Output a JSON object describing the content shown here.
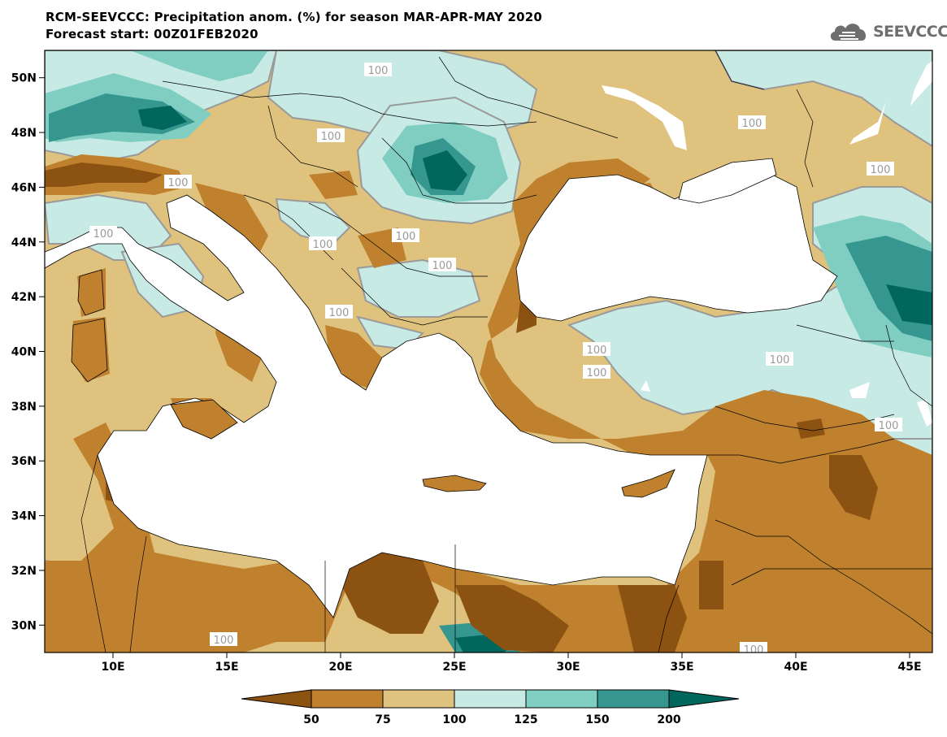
{
  "header": {
    "title_line1": "RCM-SEEVCCC: Precipitation anom. (%) for season MAR-APR-MAY 2020",
    "title_line2": "Forecast start: 00Z01FEB2020"
  },
  "logo": {
    "text": "SEEVCCC",
    "icon": "cloud-icon"
  },
  "map": {
    "lon_range": [
      7,
      46
    ],
    "lat_range": [
      29,
      51
    ],
    "lat_ticks": [
      "50N",
      "48N",
      "46N",
      "44N",
      "42N",
      "40N",
      "38N",
      "36N",
      "34N",
      "32N",
      "30N"
    ],
    "lon_ticks": [
      "10E",
      "15E",
      "20E",
      "25E",
      "30E",
      "35E",
      "40E",
      "45E"
    ],
    "contour_label": "100",
    "colors": {
      "lt50": "#8c5211",
      "50_75": "#bf812d",
      "75_100": "#dfc27d",
      "100_125": "#c7eae5",
      "125_150": "#80cdc1",
      "150_200": "#35978f",
      "gt200": "#01665e",
      "sea": "#ffffff",
      "contour": "#9a9a9a"
    }
  },
  "colorbar": {
    "labels": [
      "50",
      "75",
      "100",
      "125",
      "150",
      "200"
    ],
    "colors": [
      "#8c5211",
      "#bf812d",
      "#dfc27d",
      "#c7eae5",
      "#80cdc1",
      "#35978f",
      "#01665e"
    ]
  }
}
